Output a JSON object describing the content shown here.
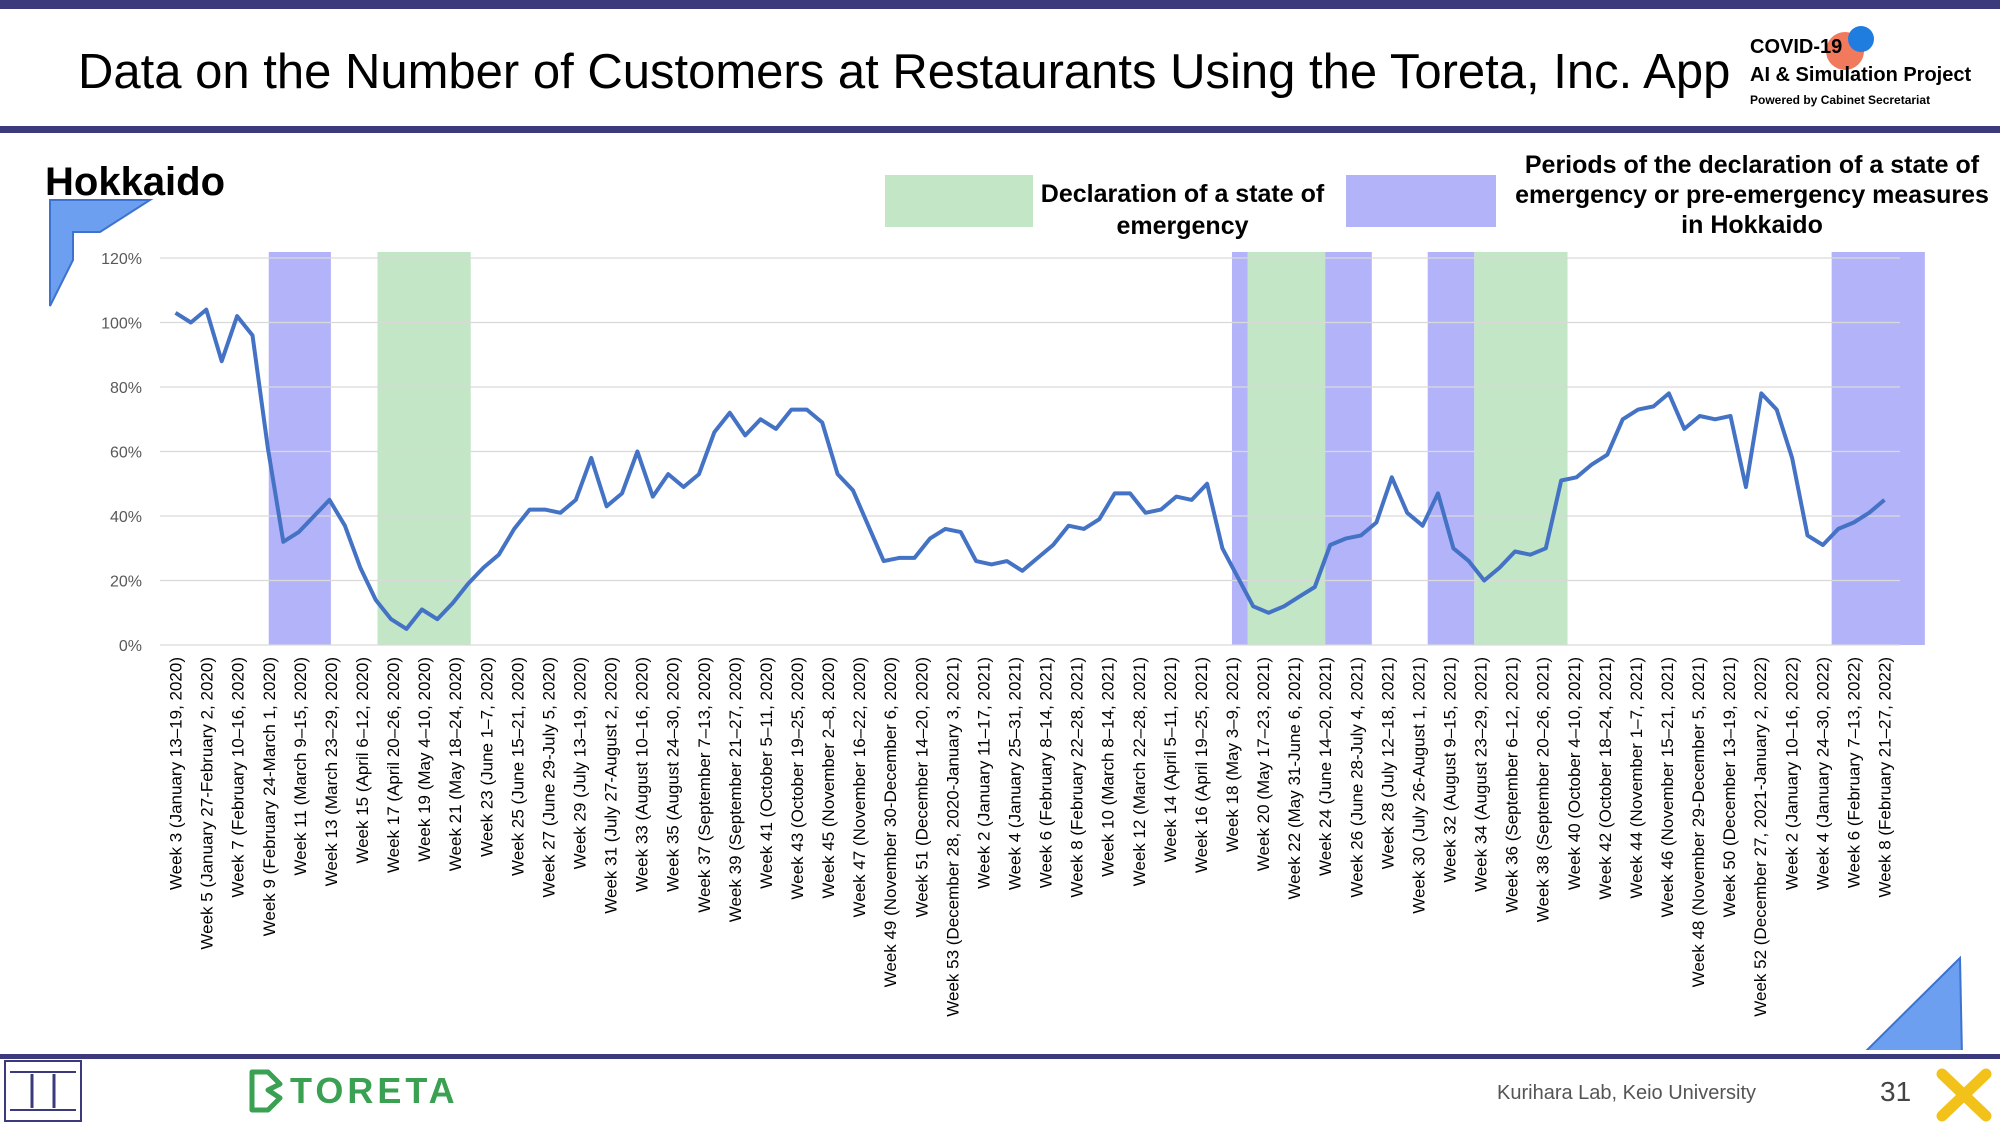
{
  "title": "Data on the Number of Customers at Restaurants Using the Toreta, Inc. App",
  "region": "Hokkaido",
  "logo": {
    "line1": "COVID-19",
    "line2": "AI & Simulation Project",
    "line3": "Powered by Cabinet Secretariat"
  },
  "legend": {
    "emergency_label": "Declaration of a state of emergency",
    "pre_emergency_label": "Periods of the declaration of a state of emergency or pre-emergency measures in Hokkaido",
    "emergency_color": "#c2e6c6",
    "pre_emergency_color": "#b3b3f9"
  },
  "footer": {
    "brand": "TORETA",
    "credit": "Kurihara Lab, Keio University",
    "page": "31"
  },
  "colors": {
    "line": "#4472c4",
    "accent": "#3a3a7c"
  },
  "chart_data": {
    "type": "line",
    "title": "",
    "xlabel": "",
    "ylabel": "",
    "ylim": [
      0,
      120
    ],
    "y_ticks": [
      "0%",
      "20%",
      "40%",
      "60%",
      "80%",
      "100%",
      "120%"
    ],
    "grid": true,
    "x_labels": [
      "Week 3 (January 13–19, 2020)",
      "Week 5 (January 27-February 2, 2020)",
      "Week 7 (February 10–16, 2020)",
      "Week 9 (February 24-March 1, 2020)",
      "Week 11 (March 9–15, 2020)",
      "Week 13 (March 23–29, 2020)",
      "Week 15 (April 6–12, 2020)",
      "Week 17 (April 20–26, 2020)",
      "Week 19 (May 4–10, 2020)",
      "Week 21 (May 18–24, 2020)",
      "Week 23 (June 1–7, 2020)",
      "Week 25 (June 15–21, 2020)",
      "Week 27 (June 29-July 5, 2020)",
      "Week 29 (July 13–19, 2020)",
      "Week 31 (July 27-August 2, 2020)",
      "Week 33 (August 10–16, 2020)",
      "Week 35 (August 24–30, 2020)",
      "Week 37 (September 7–13, 2020)",
      "Week 39 (September 21–27, 2020)",
      "Week 41 (October 5–11, 2020)",
      "Week 43 (October 19–25, 2020)",
      "Week 45 (November 2–8, 2020)",
      "Week 47 (November 16–22, 2020)",
      "Week 49 (November 30-December 6, 2020)",
      "Week 51 (December 14–20, 2020)",
      "Week 53 (December 28, 2020-January 3, 2021)",
      "Week 2 (January 11–17, 2021)",
      "Week 4 (January 25–31, 2021)",
      "Week 6 (February 8–14, 2021)",
      "Week 8 (February 22–28, 2021)",
      "Week 10 (March 8–14, 2021)",
      "Week 12 (March 22–28, 2021)",
      "Week 14 (April 5–11, 2021)",
      "Week 16 (April 19–25, 2021)",
      "Week 18 (May 3–9, 2021)",
      "Week 20 (May 17–23, 2021)",
      "Week 22 (May 31-June 6, 2021)",
      "Week 24 (June 14–20, 2021)",
      "Week 26 (June 28-July 4, 2021)",
      "Week 28 (July 12–18, 2021)",
      "Week 30 (July 26-August 1, 2021)",
      "Week 32 (August 9–15, 2021)",
      "Week 34 (August 23–29, 2021)",
      "Week 36 (September 6–12, 2021)",
      "Week 38 (September 20–26, 2021)",
      "Week 40 (October 4–10, 2021)",
      "Week 42 (October 18–24, 2021)",
      "Week 44 (November 1–7, 2021)",
      "Week 46 (November 15–21, 2021)",
      "Week 48 (November 29-December 5, 2021)",
      "Week 50 (December 13–19, 2021)",
      "Week 52 (December 27, 2021-January 2, 2022)",
      "Week 2 (January 10–16, 2022)",
      "Week 4 (January 24–30, 2022)",
      "Week 6 (February 7–13, 2022)",
      "Week 8 (February 21–27, 2022)"
    ],
    "series": [
      {
        "values": [
          103,
          100,
          104,
          88,
          102,
          96,
          61,
          32,
          35,
          40,
          45,
          37,
          24,
          14,
          8,
          5,
          11,
          8,
          13,
          19,
          24,
          28,
          36,
          42,
          42,
          41,
          45,
          58,
          43,
          47,
          60,
          46,
          53,
          49,
          53,
          66,
          72,
          65,
          70,
          67,
          73,
          73,
          69,
          53,
          48,
          37,
          26,
          27,
          27,
          33,
          36,
          35,
          26,
          25,
          26,
          23,
          27,
          31,
          37,
          36,
          39,
          47,
          47,
          41,
          42,
          46,
          45,
          50,
          30,
          21,
          12,
          10,
          12,
          15,
          18,
          31,
          33,
          34,
          38,
          52,
          41,
          37,
          47,
          30,
          26,
          20,
          24,
          29,
          28,
          30,
          51,
          52,
          56,
          59,
          70,
          73,
          74,
          78,
          67,
          71,
          70,
          71,
          49,
          78,
          73,
          58,
          34,
          31,
          36,
          38,
          41,
          45
        ]
      }
    ],
    "bands": [
      {
        "type": "pre-emergency",
        "from": 3.0,
        "to": 5.0
      },
      {
        "type": "emergency",
        "from": 6.5,
        "to": 9.5
      },
      {
        "type": "pre-emergency",
        "from": 34.0,
        "to": 34.5
      },
      {
        "type": "emergency",
        "from": 34.5,
        "to": 37.0
      },
      {
        "type": "pre-emergency",
        "from": 37.0,
        "to": 38.5
      },
      {
        "type": "pre-emergency",
        "from": 40.3,
        "to": 41.8
      },
      {
        "type": "emergency",
        "from": 41.8,
        "to": 44.8
      },
      {
        "type": "pre-emergency",
        "from": 53.3,
        "to": 56.3
      }
    ]
  }
}
